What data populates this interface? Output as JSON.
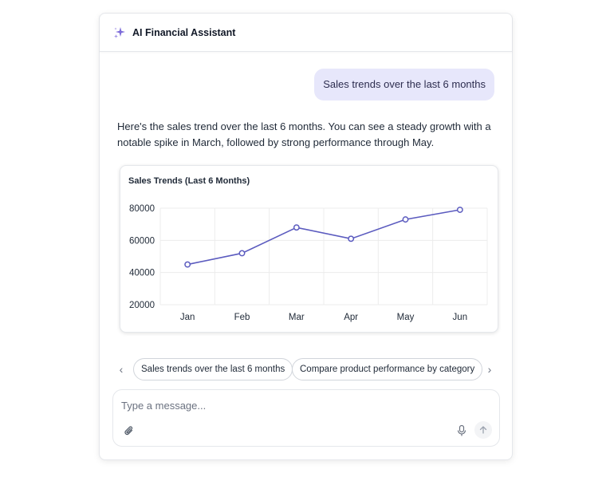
{
  "header": {
    "title": "AI Financial Assistant",
    "icon": "sparkle-icon",
    "accent": "#7c6bd9"
  },
  "messages": {
    "user": "Sales trends over the last 6 months",
    "assistant": "Here's the sales trend over the last 6 months. You can see a steady growth with a notable spike in March, followed by strong performance through May."
  },
  "chart_data": {
    "type": "line",
    "title": "Sales Trends (Last 6 Months)",
    "categories": [
      "Jan",
      "Feb",
      "Mar",
      "Apr",
      "May",
      "Jun"
    ],
    "series": [
      {
        "values": [
          45000,
          52000,
          68000,
          61000,
          73000,
          79000
        ]
      }
    ],
    "ylim": [
      20000,
      80000
    ],
    "yticks": [
      20000,
      40000,
      60000,
      80000
    ],
    "ytick_labels": [
      "20000",
      "40000",
      "60000",
      "80000"
    ],
    "grid": true,
    "color": "#5b5bbf"
  },
  "suggestions": {
    "prev_icon": "chevron-left-icon",
    "next_icon": "chevron-right-icon",
    "items": [
      "Sales trends over the last 6 months",
      "Compare product performance by category"
    ]
  },
  "composer": {
    "placeholder": "Type a message...",
    "value": "",
    "attach_icon": "paperclip-icon",
    "mic_icon": "microphone-icon",
    "send_icon": "arrow-up-icon"
  }
}
